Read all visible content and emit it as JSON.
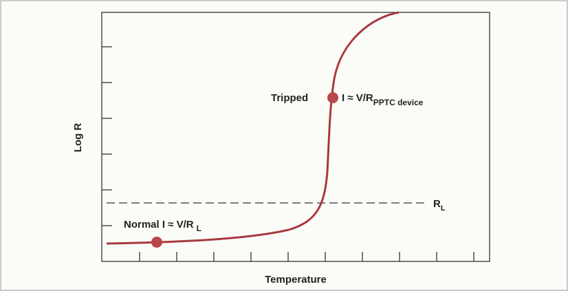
{
  "axes": {
    "y_label": "Log R",
    "x_label": "Temperature"
  },
  "annotations": {
    "tripped": {
      "label": "Tripped",
      "formula": "I ≈ V/R",
      "subscript": "PPTC device"
    },
    "normal": {
      "formula": "Normal I ≈ V/R",
      "subscript": "L"
    },
    "load_line": {
      "label": "R",
      "subscript": "L"
    }
  }
}
